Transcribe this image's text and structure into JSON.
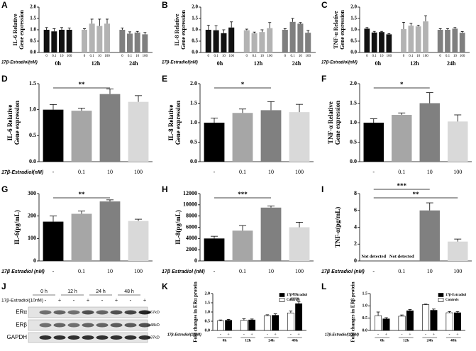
{
  "chart_data": [
    {
      "type": "grouped_bar",
      "panel": "A",
      "ylabel": [
        "IL-6 Relative",
        "Gene expression"
      ],
      "xlabel": "17β-Estradiol(nM)",
      "categories": [
        "0",
        "0.1",
        "10",
        "100"
      ],
      "series": [
        {
          "name": "0h",
          "color": "#111111",
          "values": [
            1.0,
            0.93,
            1.0,
            1.0
          ],
          "errors": [
            0.1,
            0.12,
            0.1,
            0.08
          ]
        },
        {
          "name": "12h",
          "color": "#b3b3b3",
          "values": [
            1.0,
            1.27,
            1.17,
            1.27
          ],
          "errors": [
            0.05,
            0.2,
            0.3,
            0.2
          ]
        },
        {
          "name": "24h",
          "color": "#7f7f7f",
          "values": [
            1.0,
            0.83,
            0.88,
            0.8
          ],
          "errors": [
            0.08,
            0.08,
            0.05,
            0.08
          ]
        }
      ],
      "ylim": [
        0,
        2.0
      ],
      "yticks": [
        {
          "value": 0,
          "label": "0.0"
        },
        {
          "value": 0.5,
          "label": "0.5"
        },
        {
          "value": 1.0,
          "label": "1.0"
        },
        {
          "value": 1.5,
          "label": "1.5"
        },
        {
          "value": 2.0,
          "label": "2.0"
        }
      ]
    },
    {
      "type": "grouped_bar",
      "panel": "B",
      "ylabel": [
        "IL-8 Relative",
        "Gene expression"
      ],
      "xlabel": "17β-Estradiol(nM)",
      "categories": [
        "0",
        "0.1",
        "10",
        "100"
      ],
      "series": [
        {
          "name": "0h",
          "color": "#111111",
          "values": [
            1.0,
            0.98,
            0.85,
            1.1
          ],
          "errors": [
            0.2,
            0.2,
            0.15,
            0.25
          ]
        },
        {
          "name": "12h",
          "color": "#b3b3b3",
          "values": [
            0.98,
            0.85,
            0.9,
            1.07
          ],
          "errors": [
            0.05,
            0.05,
            0.1,
            0.25
          ]
        },
        {
          "name": "24h",
          "color": "#7f7f7f",
          "values": [
            1.0,
            1.35,
            1.27,
            0.87
          ],
          "errors": [
            0.05,
            0.15,
            0.05,
            0.1
          ]
        }
      ],
      "ylim": [
        0,
        2.0
      ],
      "yticks": [
        {
          "value": 0,
          "label": "0.0"
        },
        {
          "value": 0.5,
          "label": "0.5"
        },
        {
          "value": 1.0,
          "label": "1.0"
        },
        {
          "value": 1.5,
          "label": "1.5"
        },
        {
          "value": 2.0,
          "label": "2.0"
        }
      ]
    },
    {
      "type": "grouped_bar",
      "panel": "C",
      "ylabel": [
        "TNF-α Relative",
        "Gene expression"
      ],
      "xlabel": "17β-Estradiol(nM)",
      "categories": [
        "0",
        "0.1",
        "10",
        "100"
      ],
      "series": [
        {
          "name": "0h",
          "color": "#111111",
          "values": [
            1.05,
            0.88,
            0.9,
            0.8
          ],
          "errors": [
            0.05,
            0.05,
            0.03,
            0.03
          ]
        },
        {
          "name": "12h",
          "color": "#b3b3b3",
          "values": [
            1.03,
            1.18,
            1.15,
            1.37
          ],
          "errors": [
            0.3,
            0.1,
            0.05,
            0.25
          ]
        },
        {
          "name": "24h",
          "color": "#7f7f7f",
          "values": [
            1.0,
            1.0,
            1.05,
            0.87
          ],
          "errors": [
            0.05,
            0.05,
            0.05,
            0.05
          ]
        }
      ],
      "ylim": [
        0,
        2.0
      ],
      "yticks": [
        {
          "value": 0,
          "label": "0.0"
        },
        {
          "value": 0.5,
          "label": "0.5"
        },
        {
          "value": 1.0,
          "label": "1.0"
        },
        {
          "value": 1.5,
          "label": "1.5"
        },
        {
          "value": 2.0,
          "label": "2.0"
        }
      ]
    },
    {
      "type": "bar",
      "panel": "D",
      "ylabel": [
        "IL-6 Relative",
        "Gene expression"
      ],
      "xlabel": "17β-Estradiol(nM)",
      "categories": [
        "-",
        "0.1",
        "10",
        "100"
      ],
      "colors": [
        "#000000",
        "#a6a6a6",
        "#808080",
        "#d9d9d9"
      ],
      "values": [
        1.0,
        0.98,
        1.3,
        1.15
      ],
      "errors": [
        0.1,
        0.05,
        0.1,
        0.12
      ],
      "significance": [
        null,
        null,
        "**",
        null
      ],
      "ylim": [
        0,
        1.5
      ],
      "yticks": [
        {
          "value": 0,
          "label": "0.0"
        },
        {
          "value": 0.5,
          "label": "0.5"
        },
        {
          "value": 1.0,
          "label": "1.0"
        },
        {
          "value": 1.5,
          "label": "1.5"
        }
      ]
    },
    {
      "type": "bar",
      "panel": "E",
      "ylabel": [
        "IL-8 Relative",
        "Gene expression"
      ],
      "categories": [
        "-",
        "0.1",
        "10",
        "100"
      ],
      "colors": [
        "#000000",
        "#a6a6a6",
        "#808080",
        "#d9d9d9"
      ],
      "values": [
        1.0,
        1.25,
        1.32,
        1.27
      ],
      "errors": [
        0.12,
        0.1,
        0.22,
        0.2
      ],
      "significance": [
        null,
        null,
        "*",
        null
      ],
      "ylim": [
        0,
        2.0
      ],
      "yticks": [
        {
          "value": 0,
          "label": "0.0"
        },
        {
          "value": 0.5,
          "label": "0.5"
        },
        {
          "value": 1.0,
          "label": "1.0"
        },
        {
          "value": 1.5,
          "label": "1.5"
        },
        {
          "value": 2.0,
          "label": "2.0"
        }
      ]
    },
    {
      "type": "bar",
      "panel": "F",
      "ylabel": [
        "TNF-α Relative",
        "Gene expression"
      ],
      "categories": [
        "-",
        "0.1",
        "10",
        "100"
      ],
      "colors": [
        "#000000",
        "#a6a6a6",
        "#808080",
        "#d9d9d9"
      ],
      "values": [
        1.0,
        1.2,
        1.5,
        1.03
      ],
      "errors": [
        0.1,
        0.05,
        0.27,
        0.17
      ],
      "significance": [
        null,
        null,
        "*",
        null
      ],
      "ylim": [
        0,
        2.0
      ],
      "yticks": [
        {
          "value": 0,
          "label": "0.0"
        },
        {
          "value": 0.5,
          "label": "0.5"
        },
        {
          "value": 1.0,
          "label": "1.0"
        },
        {
          "value": 1.5,
          "label": "1.5"
        },
        {
          "value": 2.0,
          "label": "2.0"
        }
      ]
    },
    {
      "type": "bar",
      "panel": "G",
      "ylabel": [
        "IL-6(pg/mL)"
      ],
      "xlabel": "17β Estradiol (nM)",
      "categories": [
        "-",
        "0.1",
        "10",
        "100"
      ],
      "colors": [
        "#000000",
        "#a6a6a6",
        "#808080",
        "#d9d9d9"
      ],
      "values": [
        175,
        210,
        265,
        178
      ],
      "errors": [
        25,
        12,
        7,
        8
      ],
      "significance": [
        null,
        null,
        "**",
        null
      ],
      "ylim": [
        0,
        300
      ],
      "yticks": [
        0,
        100,
        200,
        300
      ]
    },
    {
      "type": "bar",
      "panel": "H",
      "ylabel": [
        "IL-8(pg/mL)"
      ],
      "xlabel": "17β Estradiol (nM)",
      "categories": [
        "-",
        "0.1",
        "10",
        "100"
      ],
      "colors": [
        "#000000",
        "#a6a6a6",
        "#808080",
        "#d9d9d9"
      ],
      "values": [
        4000,
        5400,
        9500,
        6000
      ],
      "errors": [
        400,
        900,
        300,
        900
      ],
      "significance": [
        null,
        null,
        "***",
        null
      ],
      "ylim": [
        0,
        12000
      ],
      "yticks": [
        0,
        2000,
        4000,
        6000,
        8000,
        10000,
        12000
      ]
    },
    {
      "type": "bar",
      "panel": "I",
      "ylabel": [
        "TNF-α(pg/mL)"
      ],
      "xlabel": "17β Estradiol (nM)",
      "categories": [
        "-",
        "0.1",
        "10",
        "100"
      ],
      "colors": [
        "#000000",
        "#a6a6a6",
        "#808080",
        "#d9d9d9"
      ],
      "values": [
        null,
        null,
        6.0,
        2.3
      ],
      "value_labels": [
        "Not detected",
        "Not detected",
        null,
        null
      ],
      "errors": [
        null,
        null,
        0.9,
        0.3
      ],
      "significance": [
        null,
        null,
        "***",
        "**"
      ],
      "ylim": [
        0,
        8
      ],
      "yticks": [
        0,
        2,
        4,
        6,
        8
      ]
    },
    {
      "type": "dodged_bar",
      "panel": "K",
      "ylabel": [
        "Fold changes in ERα protein"
      ],
      "xlabel": "17β-Estradiol(10nM)",
      "categories": [
        "0h",
        "12h",
        "24h",
        "48h"
      ],
      "treatment_labels": [
        "+",
        "-"
      ],
      "series": [
        {
          "name": "17β-Estradiol",
          "color": "#000000",
          "values": [
            0.55,
            0.57,
            0.82,
            1.45
          ],
          "errors": [
            0.05,
            0.05,
            0.08,
            0.12
          ]
        },
        {
          "name": "Controls",
          "color": "#ffffff",
          "values": [
            0.52,
            0.55,
            0.8,
            0.95
          ],
          "errors": [
            0.05,
            0.08,
            0.05,
            0.1
          ]
        }
      ],
      "significance": [
        null,
        null,
        null,
        "**"
      ],
      "ylim": [
        0,
        2.0
      ],
      "yticks": [
        {
          "value": 0,
          "label": "0.0"
        },
        {
          "value": 0.5,
          "label": "0.5"
        },
        {
          "value": 1.0,
          "label": "1.0"
        },
        {
          "value": 1.5,
          "label": "1.5"
        },
        {
          "value": 2.0,
          "label": "2.0"
        }
      ]
    },
    {
      "type": "dodged_bar",
      "panel": "L",
      "ylabel": [
        "Fold changes in ERβ protein"
      ],
      "xlabel": "17β-Estradiol(10nM)",
      "categories": [
        "0h",
        "12h",
        "24h",
        "48h"
      ],
      "treatment_labels": [
        "+",
        "-"
      ],
      "series": [
        {
          "name": "17β-Estradiol",
          "color": "#000000",
          "values": [
            0.47,
            0.8,
            0.82,
            0.72
          ],
          "errors": [
            0.05,
            0.05,
            0.05,
            0.05
          ]
        },
        {
          "name": "Controls",
          "color": "#ffffff",
          "values": [
            0.6,
            0.58,
            1.05,
            0.72
          ],
          "errors": [
            0.15,
            0.05,
            0.02,
            0.05
          ]
        }
      ],
      "significance": [
        null,
        null,
        null,
        null
      ],
      "ylim": [
        0,
        1.5
      ],
      "yticks": [
        {
          "value": 0,
          "label": "0.0"
        },
        {
          "value": 0.5,
          "label": "0.5"
        },
        {
          "value": 1.0,
          "label": "1.0"
        },
        {
          "value": 1.5,
          "label": "1.5"
        }
      ]
    }
  ],
  "blot": {
    "panel": "J",
    "treatment": "17β-Estradiol(10nM)",
    "times": [
      "0 h",
      "12 h",
      "24 h",
      "48 h"
    ],
    "signs": [
      "-",
      "+",
      "-",
      "+",
      "-",
      "+",
      "-",
      "+"
    ],
    "rows": [
      {
        "name": "ERα",
        "size": "67kD"
      },
      {
        "name": "ERβ",
        "size": "48kD"
      },
      {
        "name": "GAPDH",
        "size": "37kD"
      }
    ]
  }
}
